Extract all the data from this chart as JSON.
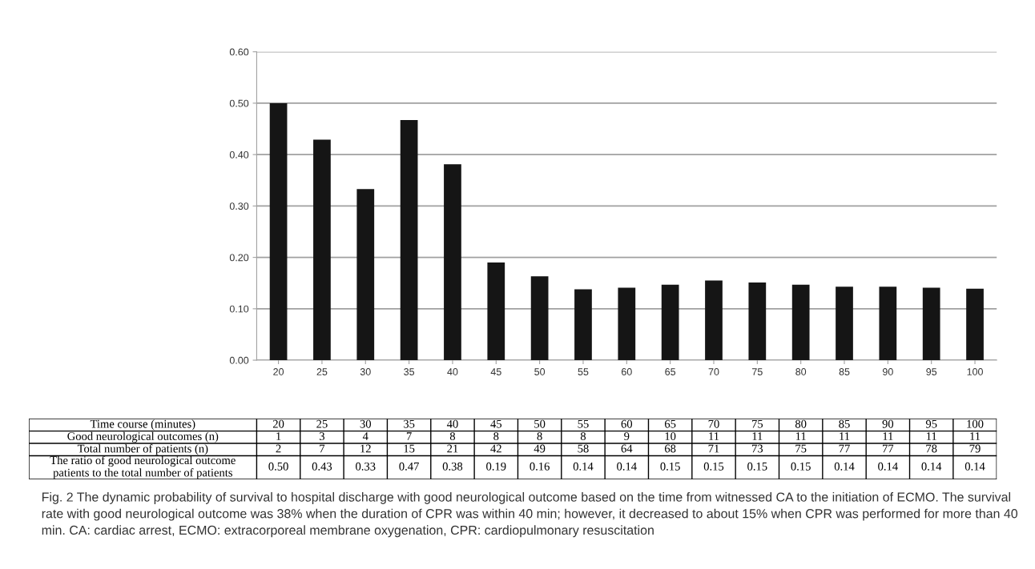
{
  "chart_data": {
    "type": "bar",
    "xlabel": "Time course (minutes)",
    "categories": [
      "20",
      "25",
      "30",
      "35",
      "40",
      "45",
      "50",
      "55",
      "60",
      "65",
      "70",
      "75",
      "80",
      "85",
      "90",
      "95",
      "100"
    ],
    "series": [
      {
        "name": "The ratio of good neurological outcome patients to the total number of patients",
        "color": "#151515",
        "values": [
          0.5,
          0.429,
          0.333,
          0.467,
          0.381,
          0.19,
          0.163,
          0.138,
          0.141,
          0.147,
          0.155,
          0.151,
          0.147,
          0.143,
          0.143,
          0.141,
          0.139
        ],
        "value_labels": [
          "0.50",
          "0.43",
          "0.33",
          "0.47",
          "0.38",
          "0.19",
          "0.16",
          "0.14",
          "0.14",
          "0.15",
          "0.15",
          "0.15",
          "0.15",
          "0.14",
          "0.14",
          "0.14",
          "0.14"
        ]
      },
      {
        "name": "Good neurological outcomes (n)",
        "type": "other",
        "values": [
          null,
          null,
          null,
          null,
          null,
          null,
          null,
          null,
          null,
          null,
          null,
          null,
          null,
          null,
          null,
          null,
          null
        ],
        "value_labels": [
          "1",
          "3",
          "4",
          "7",
          "8",
          "8",
          "8",
          "8",
          "9",
          "10",
          "11",
          "11",
          "11",
          "11",
          "11",
          "11",
          "11"
        ]
      },
      {
        "name": "Total number of patients (n)",
        "type": "other",
        "values": [
          null,
          null,
          null,
          null,
          null,
          null,
          null,
          null,
          null,
          null,
          null,
          null,
          null,
          null,
          null,
          null,
          null
        ],
        "value_labels": [
          "2",
          "7",
          "12",
          "15",
          "21",
          "42",
          "49",
          "58",
          "64",
          "68",
          "71",
          "73",
          "75",
          "77",
          "77",
          "78",
          "79"
        ]
      }
    ],
    "ylim": [
      0,
      0.6
    ],
    "yticks": [
      {
        "value": 0,
        "label": "0.00"
      },
      {
        "value": 0.1,
        "label": "0.10"
      },
      {
        "value": 0.2,
        "label": "0.20"
      },
      {
        "value": 0.3,
        "label": "0.30"
      },
      {
        "value": 0.4,
        "label": "0.40"
      },
      {
        "value": 0.5,
        "label": "0.50"
      },
      {
        "value": 0.6,
        "label": "0.60"
      }
    ],
    "grid": "y",
    "annotations": [
      "Fig. 2 The dynamic probability of survival to hospital discharge with good neurological outcome based on the time from witnessed CA to the initiation of ECMO. The survival rate with good neurological outcome was 38% when the duration of CPR was within 40 min; however, it decreased to about 15% when CPR was performed for more than 40 min. CA: cardiac arrest, ECMO: extracorporeal membrane oxygenation, CPR: cardiopulmonary resuscitation"
    ]
  }
}
